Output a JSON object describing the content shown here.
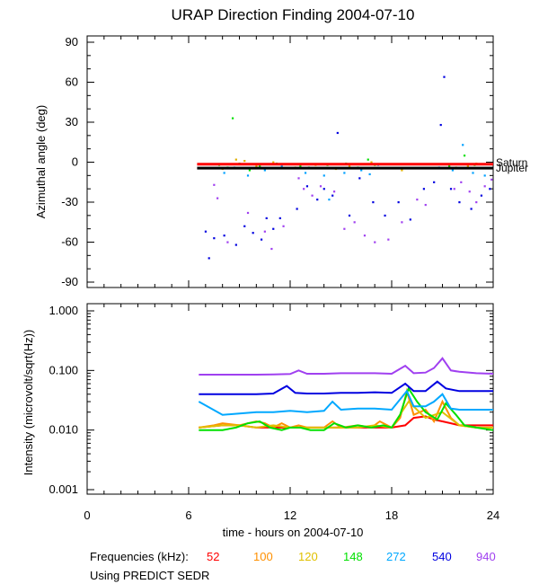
{
  "chart_data": [
    {
      "type": "scatter",
      "title": "URAP Direction Finding  2004-07-10",
      "ylabel": "Azimuthal angle (deg)",
      "xlabel": "",
      "xlim": [
        0,
        24
      ],
      "ylim": [
        -90,
        90
      ],
      "y_ticks": [
        "90",
        "60",
        "30",
        "0",
        "-30",
        "-60",
        "-90"
      ],
      "reference_lines": [
        {
          "name": "Saturn",
          "y": -1.5,
          "color": "#ff0000",
          "x_start": 6.5
        },
        {
          "name": "Jupiter",
          "y": -4.5,
          "color": "#000000",
          "x_start": 6.5
        }
      ],
      "series": [
        {
          "name": "148",
          "color": "#00e000",
          "points": [
            [
              7.8,
              -2
            ],
            [
              8.3,
              -4
            ],
            [
              8.6,
              33
            ],
            [
              9.0,
              -1
            ],
            [
              10.2,
              -3
            ],
            [
              11.2,
              -1
            ],
            [
              12.6,
              -3
            ],
            [
              14.2,
              -2
            ],
            [
              16.0,
              -4
            ],
            [
              17.0,
              -2
            ],
            [
              21.4,
              -3
            ],
            [
              22.3,
              5
            ],
            [
              9.6,
              -6
            ],
            [
              13.1,
              -4
            ],
            [
              15.3,
              -1
            ],
            [
              16.6,
              2
            ],
            [
              22.9,
              -2
            ]
          ]
        },
        {
          "name": "120",
          "color": "#e0b000",
          "points": [
            [
              8.0,
              -5
            ],
            [
              8.8,
              2
            ],
            [
              10.0,
              -3
            ],
            [
              11.0,
              0
            ],
            [
              12.3,
              -4
            ],
            [
              13.5,
              -2
            ],
            [
              15.5,
              -3
            ],
            [
              16.8,
              0
            ],
            [
              18.6,
              -6
            ],
            [
              21.8,
              -4
            ],
            [
              23.0,
              -1
            ],
            [
              9.3,
              1
            ],
            [
              14.7,
              -5
            ],
            [
              22.5,
              -3
            ]
          ]
        },
        {
          "name": "272",
          "color": "#00a0ff",
          "points": [
            [
              8.1,
              -8
            ],
            [
              8.7,
              -4
            ],
            [
              9.5,
              -10
            ],
            [
              10.5,
              -6
            ],
            [
              11.5,
              -3
            ],
            [
              12.9,
              -8
            ],
            [
              14.0,
              -10
            ],
            [
              15.2,
              -8
            ],
            [
              16.2,
              -6
            ],
            [
              17.2,
              -2
            ],
            [
              21.6,
              -6
            ],
            [
              22.2,
              13
            ],
            [
              22.8,
              -8
            ],
            [
              23.5,
              -10
            ],
            [
              14.3,
              -28
            ],
            [
              16.7,
              -9
            ],
            [
              20.8,
              -4
            ]
          ]
        },
        {
          "name": "540",
          "color": "#0000e0",
          "points": [
            [
              7.0,
              -52
            ],
            [
              7.5,
              -57
            ],
            [
              8.1,
              -55
            ],
            [
              8.8,
              -62
            ],
            [
              9.3,
              -48
            ],
            [
              9.8,
              -53
            ],
            [
              10.3,
              -58
            ],
            [
              11.0,
              -50
            ],
            [
              11.4,
              -42
            ],
            [
              12.4,
              -35
            ],
            [
              13.0,
              -18
            ],
            [
              13.6,
              -28
            ],
            [
              14.0,
              -20
            ],
            [
              14.5,
              -25
            ],
            [
              14.8,
              22
            ],
            [
              15.5,
              -40
            ],
            [
              16.1,
              -12
            ],
            [
              16.9,
              -30
            ],
            [
              17.6,
              -40
            ],
            [
              18.4,
              -30
            ],
            [
              19.1,
              -43
            ],
            [
              19.9,
              -20
            ],
            [
              20.5,
              -15
            ],
            [
              20.9,
              28
            ],
            [
              21.1,
              64
            ],
            [
              21.5,
              -20
            ],
            [
              22.0,
              -30
            ],
            [
              22.7,
              -35
            ],
            [
              23.3,
              -25
            ],
            [
              23.8,
              -20
            ],
            [
              7.2,
              -72
            ],
            [
              10.6,
              -42
            ]
          ]
        },
        {
          "name": "940",
          "color": "#a040f0",
          "points": [
            [
              7.5,
              -17
            ],
            [
              7.7,
              -27
            ],
            [
              8.3,
              -60
            ],
            [
              9.5,
              -38
            ],
            [
              10.5,
              -52
            ],
            [
              11.6,
              -48
            ],
            [
              12.5,
              -12
            ],
            [
              12.8,
              -20
            ],
            [
              13.3,
              -25
            ],
            [
              13.8,
              -18
            ],
            [
              14.6,
              -22
            ],
            [
              15.2,
              -50
            ],
            [
              15.8,
              -45
            ],
            [
              16.4,
              -55
            ],
            [
              17.0,
              -60
            ],
            [
              17.8,
              -58
            ],
            [
              18.6,
              -45
            ],
            [
              19.5,
              -28
            ],
            [
              20.0,
              -32
            ],
            [
              21.7,
              -20
            ],
            [
              22.1,
              -15
            ],
            [
              22.6,
              -22
            ],
            [
              23.0,
              -30
            ],
            [
              23.5,
              -18
            ],
            [
              23.9,
              -13
            ],
            [
              10.9,
              -65
            ]
          ]
        }
      ]
    },
    {
      "type": "line",
      "ylabel": "Intensity (microvolt/sqrt(Hz))",
      "xlabel": "time - hours on 2004-07-10",
      "xlim": [
        0,
        24
      ],
      "ylim": [
        0.001,
        1.0
      ],
      "y_scale": "log",
      "x_ticks": [
        "0",
        "6",
        "12",
        "18",
        "24"
      ],
      "y_ticks": [
        "1.000",
        "0.100",
        "0.010",
        "0.001"
      ],
      "series": [
        {
          "name": "52",
          "color": "#ff0000",
          "x": [
            6.6,
            8,
            9,
            10,
            11,
            12,
            13,
            14,
            15,
            16,
            17,
            18,
            18.8,
            19.3,
            20,
            20.5,
            21,
            21.5,
            22,
            23,
            24
          ],
          "values": [
            0.011,
            0.012,
            0.012,
            0.011,
            0.011,
            0.011,
            0.011,
            0.011,
            0.011,
            0.011,
            0.011,
            0.011,
            0.012,
            0.016,
            0.017,
            0.015,
            0.014,
            0.013,
            0.012,
            0.012,
            0.012
          ]
        },
        {
          "name": "100",
          "color": "#ff9000",
          "x": [
            6.6,
            7.5,
            8,
            9,
            10,
            10.5,
            11,
            11.5,
            12,
            12.5,
            13,
            14,
            14.5,
            15,
            16,
            16.8,
            17.3,
            18,
            18.5,
            18.9,
            19.3,
            20,
            20.5,
            21,
            21.5,
            22,
            23,
            24
          ],
          "values": [
            0.011,
            0.012,
            0.013,
            0.012,
            0.014,
            0.013,
            0.011,
            0.013,
            0.011,
            0.012,
            0.011,
            0.011,
            0.014,
            0.011,
            0.012,
            0.011,
            0.014,
            0.011,
            0.016,
            0.045,
            0.018,
            0.022,
            0.014,
            0.03,
            0.016,
            0.012,
            0.011,
            0.011
          ]
        },
        {
          "name": "120",
          "color": "#e0c000",
          "x": [
            6.6,
            8,
            9,
            10,
            11,
            12,
            13,
            14,
            15,
            16,
            17,
            18,
            19,
            20,
            21,
            22,
            23,
            24
          ],
          "values": [
            0.011,
            0.012,
            0.012,
            0.011,
            0.012,
            0.011,
            0.011,
            0.011,
            0.011,
            0.011,
            0.012,
            0.011,
            0.03,
            0.016,
            0.02,
            0.012,
            0.011,
            0.011
          ]
        },
        {
          "name": "148",
          "color": "#00e000",
          "x": [
            6.6,
            8,
            8.8,
            9.5,
            10.2,
            10.8,
            11.5,
            12,
            12.6,
            13.2,
            14,
            14.6,
            15.3,
            16,
            16.8,
            17.5,
            18,
            18.5,
            19,
            19.5,
            20,
            20.7,
            21.2,
            21.8,
            22.3,
            23,
            24
          ],
          "values": [
            0.01,
            0.01,
            0.011,
            0.013,
            0.014,
            0.011,
            0.01,
            0.011,
            0.011,
            0.01,
            0.01,
            0.013,
            0.011,
            0.012,
            0.011,
            0.012,
            0.011,
            0.018,
            0.05,
            0.03,
            0.02,
            0.015,
            0.028,
            0.018,
            0.012,
            0.011,
            0.01
          ]
        },
        {
          "name": "272",
          "color": "#00a8ff",
          "x": [
            6.6,
            8,
            9,
            10,
            11,
            12,
            13,
            14,
            14.5,
            15,
            16,
            17,
            18,
            18.9,
            19.3,
            20,
            20.5,
            21,
            21.5,
            22,
            23,
            24
          ],
          "values": [
            0.03,
            0.018,
            0.019,
            0.02,
            0.02,
            0.021,
            0.02,
            0.021,
            0.03,
            0.022,
            0.023,
            0.023,
            0.022,
            0.045,
            0.025,
            0.025,
            0.03,
            0.04,
            0.023,
            0.022,
            0.022,
            0.022
          ]
        },
        {
          "name": "540",
          "color": "#0000e0",
          "x": [
            6.6,
            8,
            9,
            10,
            11,
            11.8,
            12.3,
            13,
            14,
            15,
            16,
            17,
            18,
            18.8,
            19.3,
            20,
            20.7,
            21.2,
            22,
            23,
            24
          ],
          "values": [
            0.04,
            0.04,
            0.04,
            0.04,
            0.041,
            0.055,
            0.042,
            0.041,
            0.041,
            0.042,
            0.042,
            0.043,
            0.042,
            0.06,
            0.045,
            0.045,
            0.065,
            0.05,
            0.045,
            0.045,
            0.045
          ]
        },
        {
          "name": "940",
          "color": "#a040f0",
          "x": [
            6.6,
            8,
            9,
            10,
            11,
            12,
            12.5,
            13,
            14,
            15,
            16,
            17,
            18,
            18.8,
            19.3,
            20,
            20.5,
            21,
            21.5,
            22,
            23,
            24
          ],
          "values": [
            0.085,
            0.085,
            0.085,
            0.085,
            0.086,
            0.087,
            0.1,
            0.088,
            0.088,
            0.09,
            0.09,
            0.09,
            0.088,
            0.12,
            0.09,
            0.092,
            0.11,
            0.16,
            0.1,
            0.095,
            0.09,
            0.088
          ]
        }
      ]
    }
  ],
  "legend": {
    "label": "Frequencies (kHz):",
    "items": [
      {
        "name": "52",
        "color": "#ff0000"
      },
      {
        "name": "100",
        "color": "#ff9000"
      },
      {
        "name": "120",
        "color": "#e0c000"
      },
      {
        "name": "148",
        "color": "#00e000"
      },
      {
        "name": "272",
        "color": "#00a8ff"
      },
      {
        "name": "540",
        "color": "#0000e0"
      },
      {
        "name": "940",
        "color": "#a040f0"
      }
    ]
  },
  "footer": {
    "source": "Using PREDICT SEDR"
  }
}
